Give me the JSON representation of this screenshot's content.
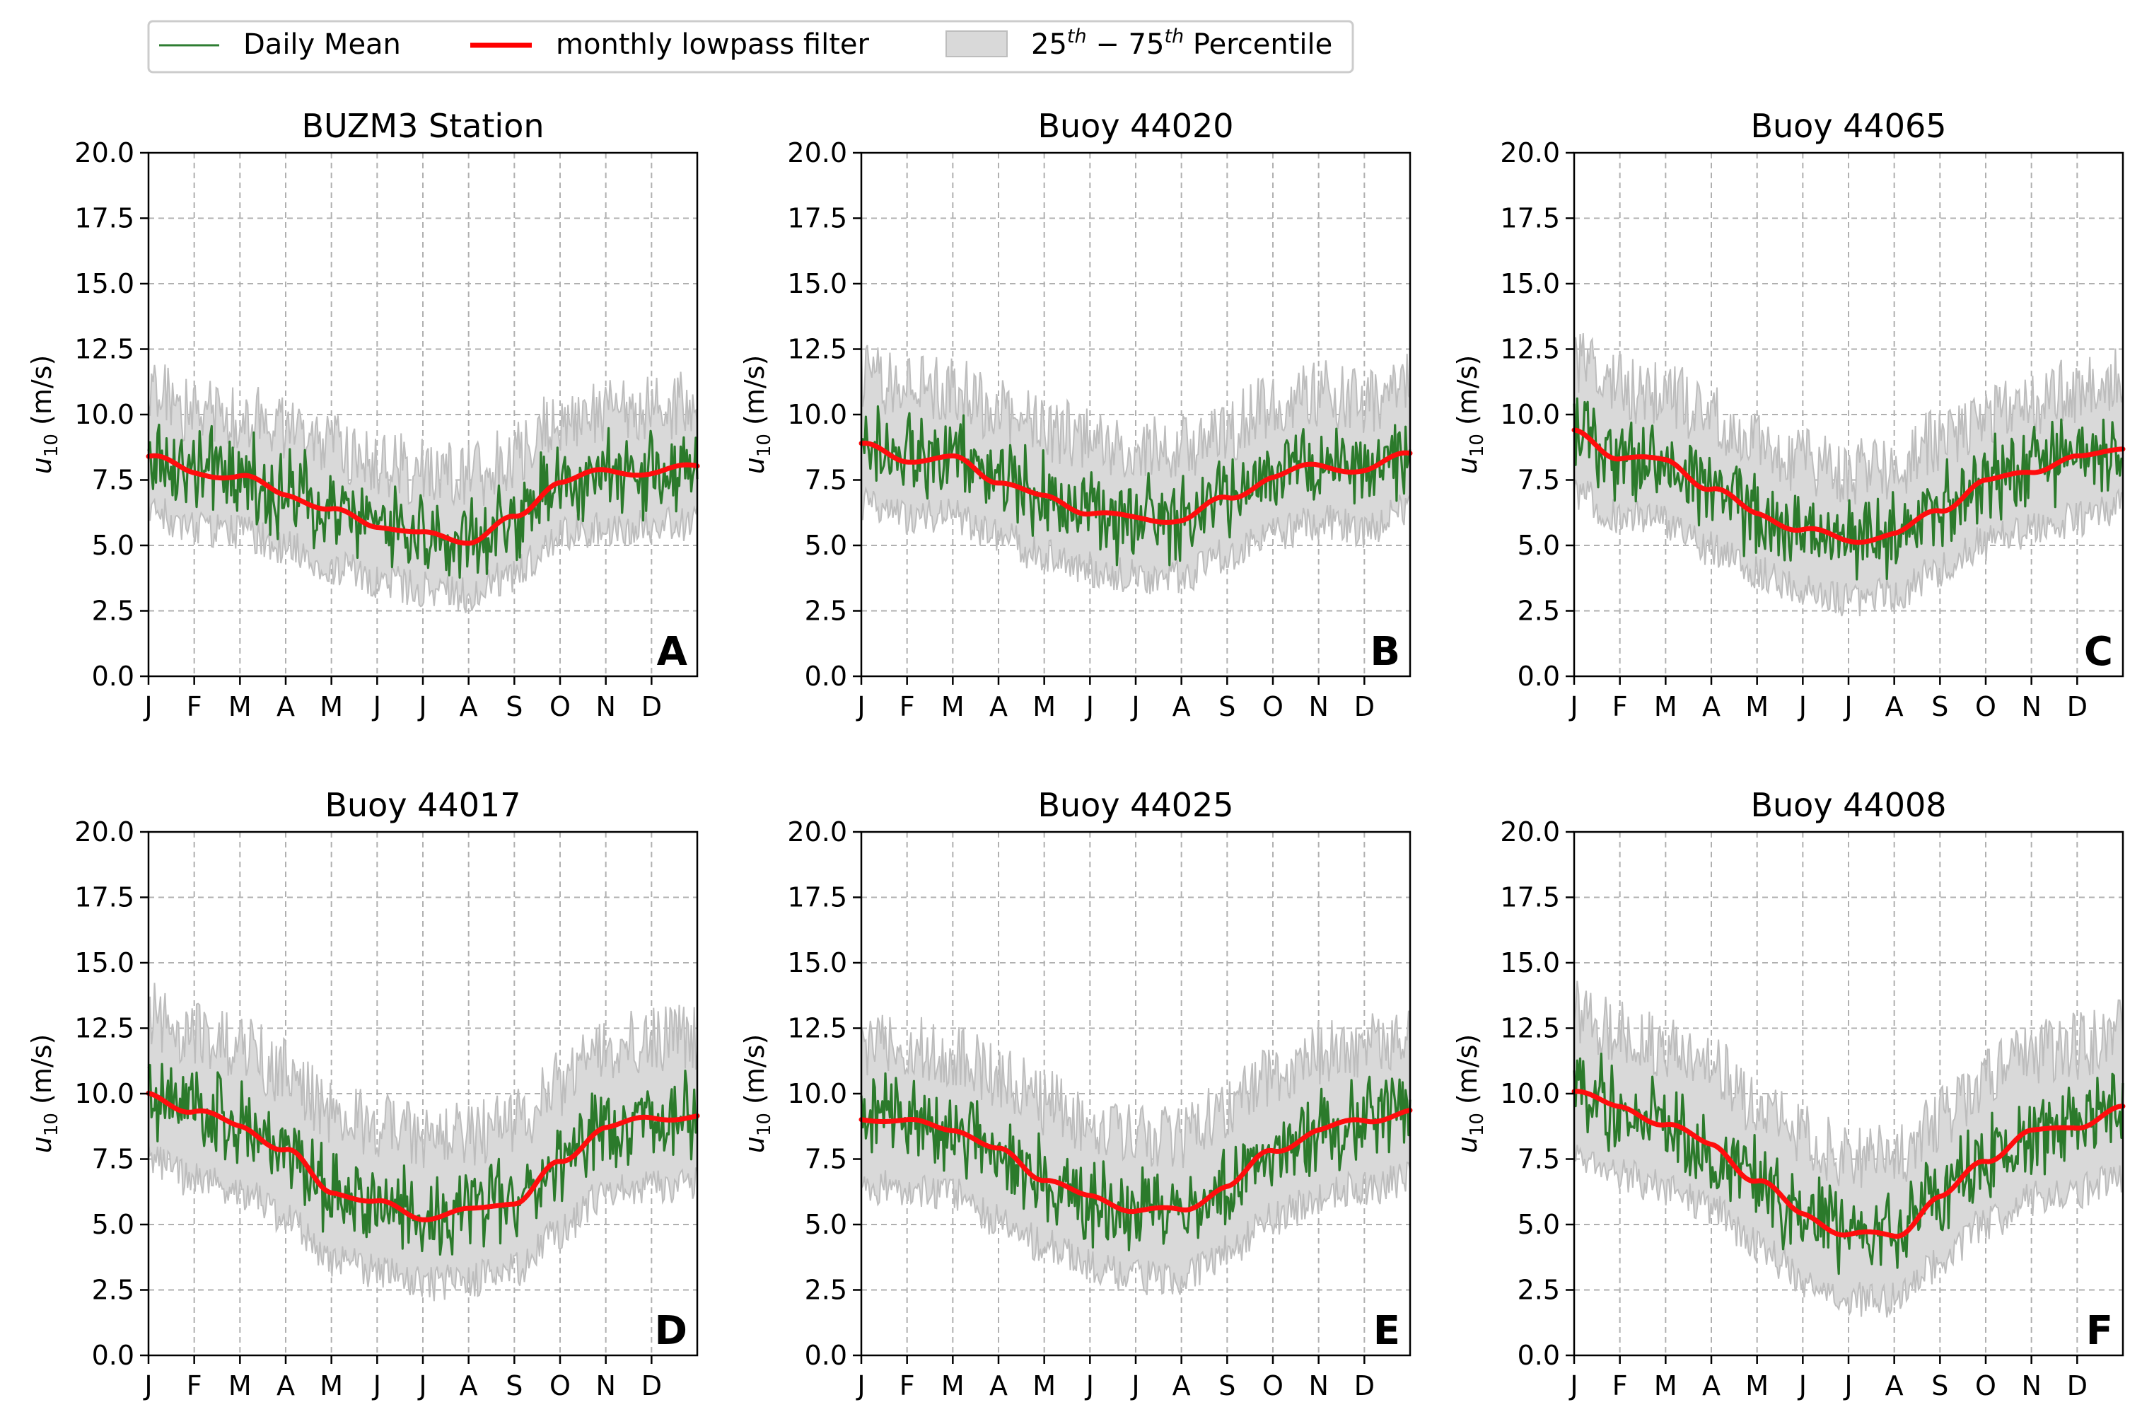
{
  "legend": {
    "placement": "top-left, above panels",
    "entries": [
      {
        "key": "daily",
        "label": "Daily Mean",
        "color": "#2e7d32"
      },
      {
        "key": "lowpass",
        "label": "monthly lowpass filter",
        "color": "#ff0000"
      },
      {
        "key": "pct",
        "label_parts": [
          "25",
          "th",
          " − 75",
          "th",
          " Percentile"
        ],
        "color": "#d3d3d3"
      }
    ]
  },
  "colors": {
    "daily": "#2b7a2b",
    "lowpass": "#ff0d0d",
    "band_fill": "#d9d9d9",
    "band_edge": "#bdbdbd",
    "grid": "#b0b0b0"
  },
  "axis_defaults": {
    "ylabel_main": "u",
    "ylabel_sub": "10",
    "ylabel_unit": " (m/s)",
    "ylim": [
      0,
      20
    ],
    "yticks": [
      "0.0",
      "2.5",
      "5.0",
      "7.5",
      "10.0",
      "12.5",
      "15.0",
      "17.5",
      "20.0"
    ],
    "months": [
      "J",
      "F",
      "M",
      "A",
      "M",
      "J",
      "J",
      "A",
      "S",
      "O",
      "N",
      "D"
    ],
    "grid": true
  },
  "chart_data": [
    {
      "type": "line",
      "title": "BUZM3 Station",
      "letter": "A",
      "series": [
        {
          "name": "monthly lowpass filter",
          "month_values": [
            8.4,
            7.8,
            7.6,
            7.0,
            6.3,
            5.8,
            5.4,
            5.2,
            6.0,
            7.5,
            7.8,
            7.8,
            8.0
          ]
        },
        {
          "name": "Daily Mean",
          "month_values": [
            8.4,
            7.8,
            7.6,
            7.0,
            6.3,
            5.8,
            5.4,
            5.2,
            6.0,
            7.5,
            7.8,
            7.8,
            8.0
          ]
        }
      ],
      "band_low_offset": 2.1,
      "band_high_offset": 2.4
    },
    {
      "type": "line",
      "title": "Buoy 44020",
      "letter": "B",
      "series": [
        {
          "name": "monthly lowpass filter",
          "month_values": [
            8.8,
            8.3,
            8.3,
            7.5,
            6.8,
            6.3,
            6.0,
            6.0,
            6.8,
            7.6,
            8.1,
            7.8,
            8.6
          ]
        },
        {
          "name": "Daily Mean",
          "month_values": [
            8.8,
            8.3,
            8.3,
            7.5,
            6.8,
            6.3,
            6.0,
            6.0,
            6.8,
            7.6,
            8.1,
            7.8,
            8.6
          ]
        }
      ],
      "band_low_offset": 2.2,
      "band_high_offset": 2.7
    },
    {
      "type": "line",
      "title": "Buoy 44065",
      "letter": "C",
      "series": [
        {
          "name": "monthly lowpass filter",
          "month_values": [
            9.3,
            8.4,
            8.2,
            7.2,
            6.2,
            5.6,
            5.2,
            5.4,
            6.4,
            7.4,
            7.9,
            8.3,
            8.8
          ]
        },
        {
          "name": "Daily Mean",
          "month_values": [
            9.3,
            8.4,
            8.2,
            7.2,
            6.2,
            5.6,
            5.2,
            5.4,
            6.4,
            7.4,
            7.9,
            8.3,
            8.8
          ]
        }
      ],
      "band_low_offset": 2.3,
      "band_high_offset": 2.6
    },
    {
      "type": "line",
      "title": "Buoy 44017",
      "letter": "D",
      "series": [
        {
          "name": "monthly lowpass filter",
          "month_values": [
            10.0,
            9.3,
            8.8,
            7.8,
            6.3,
            5.8,
            5.3,
            5.5,
            5.9,
            7.3,
            8.8,
            9.0,
            9.2
          ]
        },
        {
          "name": "Daily Mean",
          "month_values": [
            10.0,
            9.3,
            8.8,
            7.8,
            6.3,
            5.8,
            5.3,
            5.5,
            5.9,
            7.3,
            8.8,
            9.0,
            9.2
          ]
        }
      ],
      "band_low_offset": 2.6,
      "band_high_offset": 3.0
    },
    {
      "type": "line",
      "title": "Buoy 44025",
      "letter": "E",
      "series": [
        {
          "name": "monthly lowpass filter",
          "month_values": [
            9.1,
            8.9,
            8.7,
            7.8,
            6.8,
            6.0,
            5.6,
            5.5,
            6.5,
            7.8,
            8.6,
            9.0,
            9.3
          ]
        },
        {
          "name": "Daily Mean",
          "month_values": [
            9.1,
            8.9,
            8.7,
            7.8,
            6.8,
            6.0,
            5.6,
            5.5,
            6.5,
            7.8,
            8.6,
            9.0,
            9.3
          ]
        }
      ],
      "band_low_offset": 2.6,
      "band_high_offset": 2.9
    },
    {
      "type": "line",
      "title": "Buoy 44008",
      "letter": "F",
      "series": [
        {
          "name": "monthly lowpass filter",
          "month_values": [
            10.2,
            9.4,
            8.9,
            8.0,
            6.7,
            5.4,
            4.6,
            4.6,
            6.0,
            7.5,
            8.5,
            8.8,
            9.4
          ]
        },
        {
          "name": "Daily Mean",
          "month_values": [
            10.2,
            9.4,
            8.9,
            8.0,
            6.7,
            5.4,
            4.6,
            4.6,
            6.0,
            7.5,
            8.5,
            8.8,
            9.4
          ]
        }
      ],
      "band_low_offset": 2.5,
      "band_high_offset": 3.0
    }
  ]
}
